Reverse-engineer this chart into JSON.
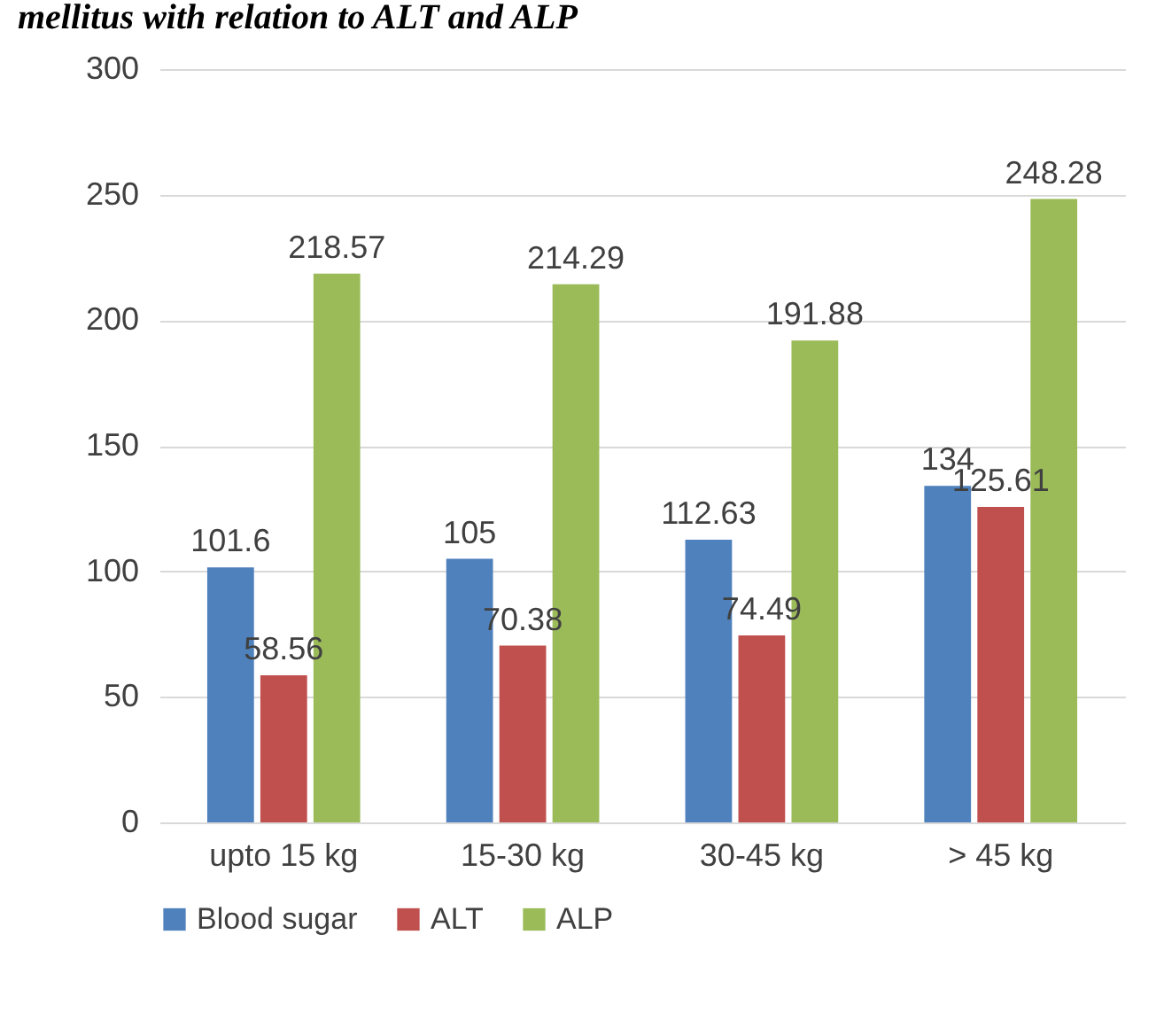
{
  "chart_data": {
    "type": "bar",
    "title": "mellitus with relation to ALT and ALP",
    "categories": [
      "upto 15 kg",
      "15-30 kg",
      "30-45 kg",
      "> 45 kg"
    ],
    "series": [
      {
        "name": "Blood sugar",
        "color": "#4f81bd",
        "values": [
          101.6,
          105,
          112.63,
          134
        ]
      },
      {
        "name": "ALT",
        "color": "#c0504d",
        "values": [
          58.56,
          70.38,
          74.49,
          125.61
        ]
      },
      {
        "name": "ALP",
        "color": "#9bbb59",
        "values": [
          218.57,
          214.29,
          191.88,
          248.28
        ]
      }
    ],
    "ylim": [
      0,
      300
    ],
    "yticks": [
      0,
      50,
      100,
      150,
      200,
      250,
      300
    ],
    "grid": "y",
    "legend": "bottom",
    "data_labels": true
  }
}
